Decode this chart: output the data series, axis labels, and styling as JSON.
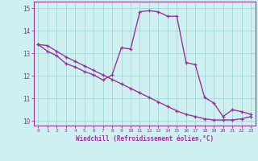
{
  "xlabel": "Windchill (Refroidissement éolien,°C)",
  "background_color": "#cff0f0",
  "grid_color": "#a8dada",
  "line_color": "#993399",
  "spine_color": "#993399",
  "xlim": [
    -0.5,
    23.5
  ],
  "ylim": [
    9.8,
    15.3
  ],
  "xticks": [
    0,
    1,
    2,
    3,
    4,
    5,
    6,
    7,
    8,
    9,
    10,
    11,
    12,
    13,
    14,
    15,
    16,
    17,
    18,
    19,
    20,
    21,
    22,
    23
  ],
  "yticks": [
    10,
    11,
    12,
    13,
    14,
    15
  ],
  "line1_x": [
    0,
    1,
    2,
    3,
    4,
    5,
    6,
    7,
    8,
    9,
    10,
    11,
    12,
    13,
    14,
    15,
    16,
    17,
    18,
    19,
    20,
    21,
    22,
    23
  ],
  "line1_y": [
    13.4,
    13.35,
    13.1,
    12.85,
    12.65,
    12.45,
    12.25,
    12.05,
    11.85,
    11.65,
    11.45,
    11.25,
    11.05,
    10.85,
    10.65,
    10.45,
    10.3,
    10.2,
    10.1,
    10.05,
    10.05,
    10.05,
    10.1,
    10.2
  ],
  "line2_x": [
    0,
    1,
    2,
    3,
    4,
    5,
    6,
    7,
    8,
    9,
    10,
    11,
    12,
    13,
    14,
    15,
    16,
    17,
    18,
    19,
    20,
    21,
    22,
    23
  ],
  "line2_y": [
    13.4,
    13.1,
    12.9,
    12.55,
    12.4,
    12.2,
    12.05,
    11.82,
    12.05,
    13.25,
    13.2,
    14.85,
    14.9,
    14.85,
    14.65,
    14.65,
    12.6,
    12.5,
    11.05,
    10.8,
    10.2,
    10.5,
    10.42,
    10.3
  ]
}
